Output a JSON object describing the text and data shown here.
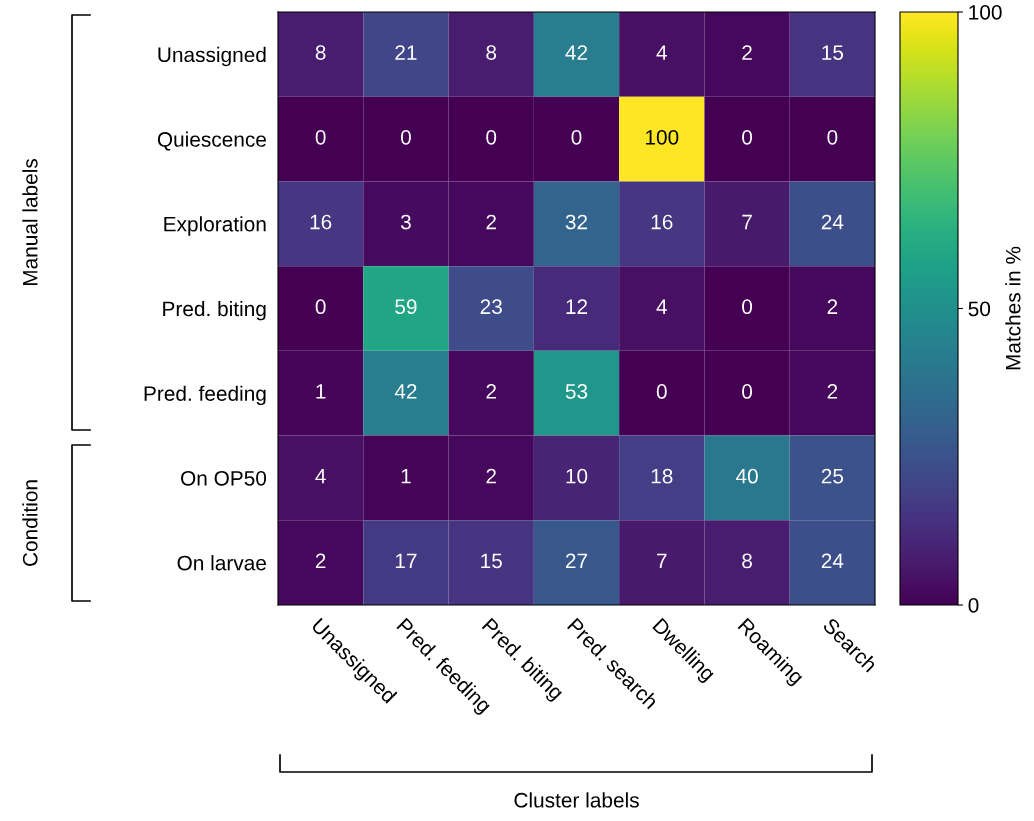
{
  "chart_data": {
    "type": "heatmap",
    "categories": [
      "Unassigned",
      "Pred. feeding",
      "Pred. biting",
      "Pred. search",
      "Dwelling",
      "Roaming",
      "Search"
    ],
    "y_categories": [
      "Unassigned",
      "Quiescence",
      "Exploration",
      "Pred. biting",
      "Pred. feeding",
      "On OP50",
      "On larvae"
    ],
    "cells": [
      [
        8,
        21,
        8,
        42,
        4,
        2,
        15
      ],
      [
        0,
        0,
        0,
        0,
        100,
        0,
        0
      ],
      [
        16,
        3,
        2,
        32,
        16,
        7,
        24
      ],
      [
        0,
        59,
        23,
        12,
        4,
        0,
        2
      ],
      [
        1,
        42,
        2,
        53,
        0,
        0,
        2
      ],
      [
        4,
        1,
        2,
        10,
        18,
        40,
        25
      ],
      [
        2,
        17,
        15,
        27,
        7,
        8,
        24
      ]
    ],
    "data_labels": true,
    "clim": [
      0,
      100
    ],
    "cticks": [
      0,
      50,
      100
    ],
    "clabel": "Matches in %",
    "xlabel": "Cluster labels",
    "annotations": [
      "Manual labels",
      "Condition"
    ]
  }
}
